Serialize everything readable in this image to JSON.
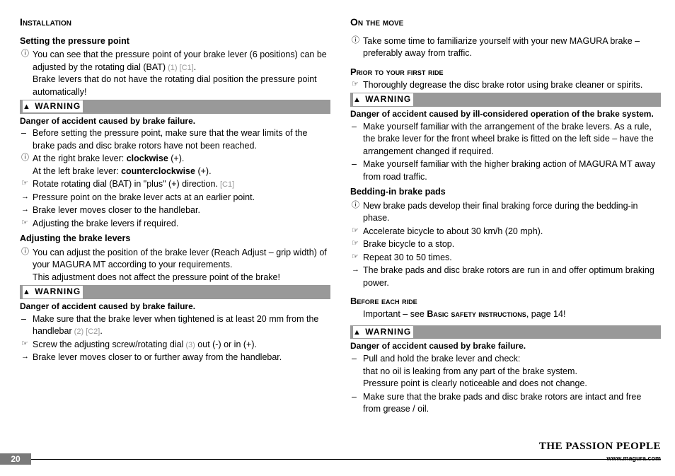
{
  "left": {
    "sectionHead": "Installation",
    "sub1": "Setting the pressure point",
    "p1a": "You can see that the pressure point of your brake lever (6 positions) can be adjusted by the rotating dial (BAT)",
    "p1ref": " (1) [C1]",
    "p1b": ".",
    "p1c": "Brake levers that do not have the rotating dial position the pressure point automatically!",
    "warn1": "WARNING",
    "danger1": "Danger of accident caused by brake failure.",
    "d1a": "Before setting the pressure point, make sure that the wear limits of the brake pads and disc brake rotors have not been reached.",
    "p2a": "At the right brake lever: ",
    "p2b": "clockwise ",
    "p2c": "(+).",
    "p2d": "At the left brake lever: ",
    "p2e": "counterclockwise ",
    "p2f": "(+).",
    "p3a": "Rotate rotating dial (BAT) in \"plus\" (+) direction.",
    "p3ref": " [C1]",
    "p4": "Pressure point on the brake lever acts at an earlier point.",
    "p5": "Brake lever moves closer to the handlebar.",
    "p6": "Adjusting the brake levers if required.",
    "sub2": "Adjusting the brake levers",
    "p7a": "You can adjust the position of the brake lever (Reach Adjust – grip width) of your MAGURA MT according to your requirements.",
    "p7b": "This adjustment does not affect the pressure point of the brake!",
    "warn2": "WARNING",
    "danger2": "Danger of accident caused by brake failure.",
    "d2a": "Make sure that the brake lever when tightened is at least 20 mm from the handlebar",
    "d2ref": " (2) [C2]",
    "d2b": ".",
    "p8a": "Screw the adjusting screw/rotating dial",
    "p8ref": " (3)",
    "p8b": " out (-) or in (+).",
    "p9": "Brake lever moves closer to or further away from the handlebar."
  },
  "right": {
    "sectionHead": "On the move",
    "p1": "Take some time to familiarize yourself with your new MAGURA brake – preferably away from traffic.",
    "sub1": "Prior to your first ride",
    "p2": "Thoroughly degrease the disc brake rotor using brake cleaner or spirits.",
    "warn1": "WARNING",
    "danger1": "Danger of accident caused by ill-considered operation of the brake system.",
    "d1a": "Make yourself familiar with the arrangement of the brake levers. As a rule, the brake lever for the front wheel brake is fitted on the left side – have the arrangement changed if required.",
    "d1b": "Make yourself familiar with the higher braking action of MAGURA MT away from road traffic.",
    "sub2": "Bedding-in brake pads",
    "p3": "New brake pads develop their final braking force during the bedding-in phase.",
    "p4": "Accelerate bicycle to about 30 km/h (20 mph).",
    "p5": "Brake bicycle to a stop.",
    "p6": "Repeat 30 to 50 times.",
    "p7": "The brake pads and disc brake rotors are run in and offer optimum braking power.",
    "sub3": "Before each ride",
    "p8a": "Important – see ",
    "p8b": "Basic safety instructions",
    "p8c": ", page 14!",
    "warn2": "WARNING",
    "danger2": "Danger of accident caused by brake failure.",
    "d2a": "Pull and hold the brake lever and check:",
    "d2b": "that no oil is leaking from any part of the brake system.",
    "d2c": "Pressure point is clearly noticeable and does not change.",
    "d2d": "Make sure that the brake pads and disc brake rotors are intact and free from grease / oil."
  },
  "footer": {
    "pageNum": "20",
    "tagline": "THE PASSION PEOPLE",
    "url": "www.magura.com"
  },
  "colors": {
    "warningBg": "#999999",
    "footerBarBg": "#7a7a7a",
    "greyText": "#999999"
  }
}
